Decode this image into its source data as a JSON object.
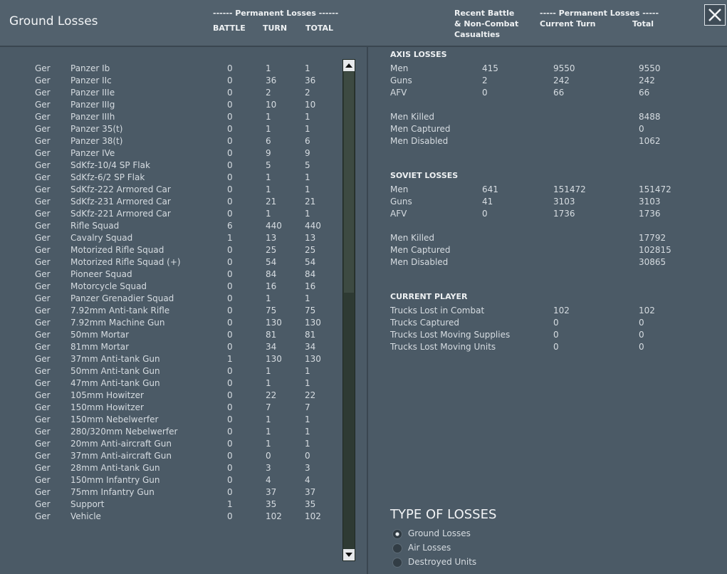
{
  "header": {
    "title": "Ground Losses",
    "perm_left": "------ Permanent Losses ------",
    "columns": [
      "BATTLE",
      "TURN",
      "TOTAL"
    ],
    "recent": [
      "Recent Battle",
      "& Non-Combat",
      "Casualties"
    ],
    "perm_right": "----- Permanent Losses -----",
    "current_turn": "Current Turn",
    "total": "Total"
  },
  "unit_rows": [
    {
      "nation": "Ger",
      "unit": "Panzer Ib",
      "battle": 0,
      "turn": 1,
      "total": 1
    },
    {
      "nation": "Ger",
      "unit": "Panzer IIc",
      "battle": 0,
      "turn": 36,
      "total": 36
    },
    {
      "nation": "Ger",
      "unit": "Panzer IIIe",
      "battle": 0,
      "turn": 2,
      "total": 2
    },
    {
      "nation": "Ger",
      "unit": "Panzer IIIg",
      "battle": 0,
      "turn": 10,
      "total": 10
    },
    {
      "nation": "Ger",
      "unit": "Panzer IIIh",
      "battle": 0,
      "turn": 1,
      "total": 1
    },
    {
      "nation": "Ger",
      "unit": "Panzer 35(t)",
      "battle": 0,
      "turn": 1,
      "total": 1
    },
    {
      "nation": "Ger",
      "unit": "Panzer 38(t)",
      "battle": 0,
      "turn": 6,
      "total": 6
    },
    {
      "nation": "Ger",
      "unit": "Panzer IVe",
      "battle": 0,
      "turn": 9,
      "total": 9
    },
    {
      "nation": "Ger",
      "unit": "SdKfz-10/4 SP Flak",
      "battle": 0,
      "turn": 5,
      "total": 5
    },
    {
      "nation": "Ger",
      "unit": "SdKfz-6/2 SP Flak",
      "battle": 0,
      "turn": 1,
      "total": 1
    },
    {
      "nation": "Ger",
      "unit": "SdKfz-222 Armored Car",
      "battle": 0,
      "turn": 1,
      "total": 1
    },
    {
      "nation": "Ger",
      "unit": "SdKfz-231 Armored Car",
      "battle": 0,
      "turn": 21,
      "total": 21
    },
    {
      "nation": "Ger",
      "unit": "SdKfz-221 Armored Car",
      "battle": 0,
      "turn": 1,
      "total": 1
    },
    {
      "nation": "Ger",
      "unit": "Rifle Squad",
      "battle": 6,
      "turn": 440,
      "total": 440
    },
    {
      "nation": "Ger",
      "unit": "Cavalry Squad",
      "battle": 1,
      "turn": 13,
      "total": 13
    },
    {
      "nation": "Ger",
      "unit": "Motorized Rifle Squad",
      "battle": 0,
      "turn": 25,
      "total": 25
    },
    {
      "nation": "Ger",
      "unit": "Motorized Rifle Squad (+)",
      "battle": 0,
      "turn": 54,
      "total": 54
    },
    {
      "nation": "Ger",
      "unit": "Pioneer Squad",
      "battle": 0,
      "turn": 84,
      "total": 84
    },
    {
      "nation": "Ger",
      "unit": "Motorcycle Squad",
      "battle": 0,
      "turn": 16,
      "total": 16
    },
    {
      "nation": "Ger",
      "unit": "Panzer Grenadier Squad",
      "battle": 0,
      "turn": 1,
      "total": 1
    },
    {
      "nation": "Ger",
      "unit": "7.92mm Anti-tank Rifle",
      "battle": 0,
      "turn": 75,
      "total": 75
    },
    {
      "nation": "Ger",
      "unit": "7.92mm Machine Gun",
      "battle": 0,
      "turn": 130,
      "total": 130
    },
    {
      "nation": "Ger",
      "unit": "50mm Mortar",
      "battle": 0,
      "turn": 81,
      "total": 81
    },
    {
      "nation": "Ger",
      "unit": "81mm Mortar",
      "battle": 0,
      "turn": 34,
      "total": 34
    },
    {
      "nation": "Ger",
      "unit": "37mm Anti-tank Gun",
      "battle": 1,
      "turn": 130,
      "total": 130
    },
    {
      "nation": "Ger",
      "unit": "50mm Anti-tank Gun",
      "battle": 0,
      "turn": 1,
      "total": 1
    },
    {
      "nation": "Ger",
      "unit": "47mm Anti-tank Gun",
      "battle": 0,
      "turn": 1,
      "total": 1
    },
    {
      "nation": "Ger",
      "unit": "105mm Howitzer",
      "battle": 0,
      "turn": 22,
      "total": 22
    },
    {
      "nation": "Ger",
      "unit": "150mm Howitzer",
      "battle": 0,
      "turn": 7,
      "total": 7
    },
    {
      "nation": "Ger",
      "unit": "150mm Nebelwerfer",
      "battle": 0,
      "turn": 1,
      "total": 1
    },
    {
      "nation": "Ger",
      "unit": "280/320mm Nebelwerfer",
      "battle": 0,
      "turn": 1,
      "total": 1
    },
    {
      "nation": "Ger",
      "unit": "20mm Anti-aircraft Gun",
      "battle": 0,
      "turn": 1,
      "total": 1
    },
    {
      "nation": "Ger",
      "unit": "37mm Anti-aircraft Gun",
      "battle": 0,
      "turn": 0,
      "total": 0
    },
    {
      "nation": "Ger",
      "unit": "28mm Anti-tank Gun",
      "battle": 0,
      "turn": 3,
      "total": 3
    },
    {
      "nation": "Ger",
      "unit": "150mm Infantry Gun",
      "battle": 0,
      "turn": 4,
      "total": 4
    },
    {
      "nation": "Ger",
      "unit": "75mm Infantry Gun",
      "battle": 0,
      "turn": 37,
      "total": 37
    },
    {
      "nation": "Ger",
      "unit": "Support",
      "battle": 1,
      "turn": 35,
      "total": 35
    },
    {
      "nation": "Ger",
      "unit": "Vehicle",
      "battle": 0,
      "turn": 102,
      "total": 102
    }
  ],
  "axis": {
    "title": "AXIS LOSSES",
    "rows": [
      {
        "label": "Men",
        "recent": 415,
        "current": 9550,
        "total": 9550
      },
      {
        "label": "Guns",
        "recent": 2,
        "current": 242,
        "total": 242
      },
      {
        "label": "AFV",
        "recent": 0,
        "current": 66,
        "total": 66
      }
    ],
    "detail": [
      {
        "label": "Men Killed",
        "total": 8488
      },
      {
        "label": "Men Captured",
        "total": 0
      },
      {
        "label": "Men Disabled",
        "total": 1062
      }
    ]
  },
  "soviet": {
    "title": "SOVIET LOSSES",
    "rows": [
      {
        "label": "Men",
        "recent": 641,
        "current": 151472,
        "total": 151472
      },
      {
        "label": "Guns",
        "recent": 41,
        "current": 3103,
        "total": 3103
      },
      {
        "label": "AFV",
        "recent": 0,
        "current": 1736,
        "total": 1736
      }
    ],
    "detail": [
      {
        "label": "Men Killed",
        "total": 17792
      },
      {
        "label": "Men Captured",
        "total": 102815
      },
      {
        "label": "Men Disabled",
        "total": 30865
      }
    ]
  },
  "current_player": {
    "title": "CURRENT PLAYER",
    "rows": [
      {
        "label": "Trucks Lost in Combat",
        "current": 102,
        "total": 102
      },
      {
        "label": "Trucks Captured",
        "current": 0,
        "total": 0
      },
      {
        "label": "Trucks Lost Moving Supplies",
        "current": 0,
        "total": 0
      },
      {
        "label": "Trucks Lost Moving Units",
        "current": 0,
        "total": 0
      }
    ]
  },
  "type_of_losses": {
    "title": "TYPE OF LOSSES",
    "options": [
      "Ground Losses",
      "Air Losses",
      "Destroyed Units"
    ],
    "selected": 0
  }
}
